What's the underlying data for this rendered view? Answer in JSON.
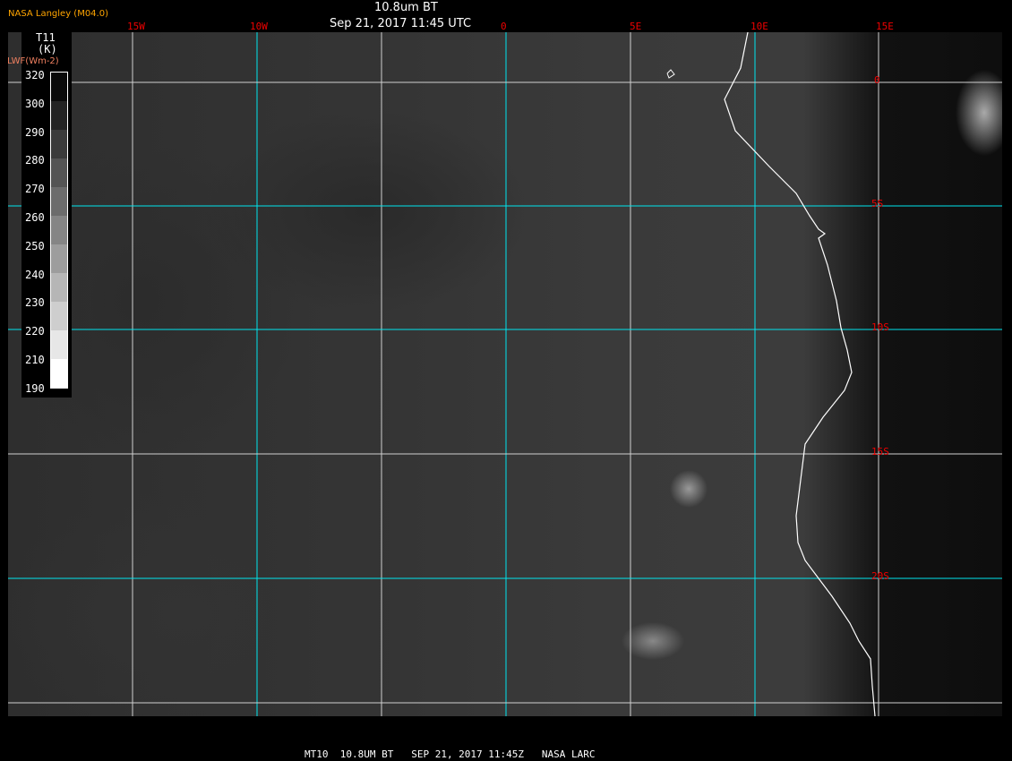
{
  "header": {
    "agency": "NASA Langley (M04.0)",
    "title_line1": "10.8um BT",
    "title_line2": "Sep 21, 2017 11:45 UTC"
  },
  "lon_labels": [
    "15W",
    "10W",
    "0",
    "5E",
    "10E",
    "15E"
  ],
  "lat_labels": [
    "0",
    "5S",
    "10S",
    "15S",
    "20S"
  ],
  "colorbar": {
    "title": "T11",
    "unit": "(K)",
    "overlay": "LWF(Wm-2)",
    "ticks": [
      "320",
      "300",
      "290",
      "280",
      "270",
      "260",
      "250",
      "240",
      "230",
      "220",
      "210",
      "190"
    ]
  },
  "footer": "MT10  10.8UM BT   SEP 21, 2017 11:45Z   NASA LARC",
  "colors": {
    "grid_primary": "#00e5ee",
    "grid_secondary": "#d0d0d0",
    "labels": "#e00000",
    "agency": "#ffa500",
    "coastline": "#ffffff"
  }
}
